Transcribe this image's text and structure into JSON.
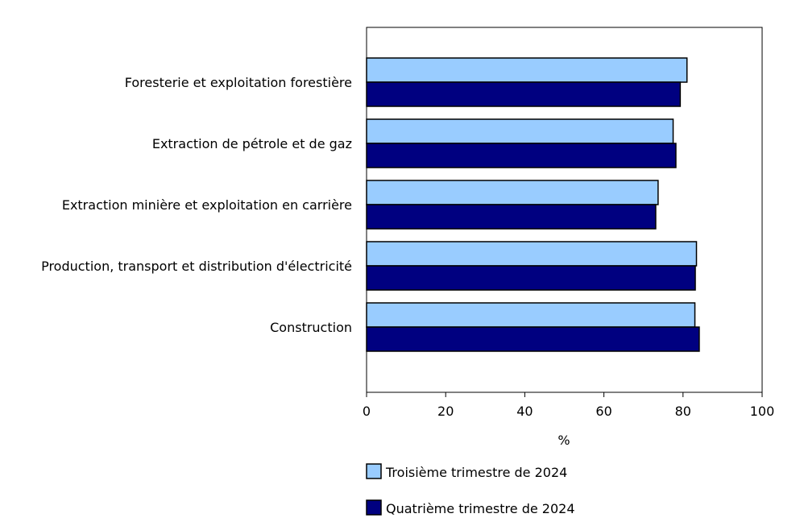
{
  "chart_data": {
    "type": "bar",
    "orientation": "horizontal",
    "categories": [
      "Foresterie et exploitation forestière",
      "Extraction de pétrole et de gaz",
      "Extraction minière et exploitation en carrière",
      "Production, transport et distribution d'électricité",
      "Construction"
    ],
    "series": [
      {
        "name": "Troisième trimestre de 2024",
        "color": "#99ccff",
        "values": [
          81.0,
          77.5,
          73.7,
          83.4,
          83.0
        ]
      },
      {
        "name": "Quatrième trimestre de 2024",
        "color": "#000080",
        "values": [
          79.3,
          78.2,
          73.1,
          83.1,
          84.1
        ]
      }
    ],
    "xlabel": "%",
    "xlim": [
      0,
      100
    ],
    "xticks": [
      "0",
      "20",
      "40",
      "60",
      "80",
      "100"
    ],
    "legend_position": "bottom",
    "grid": false
  }
}
